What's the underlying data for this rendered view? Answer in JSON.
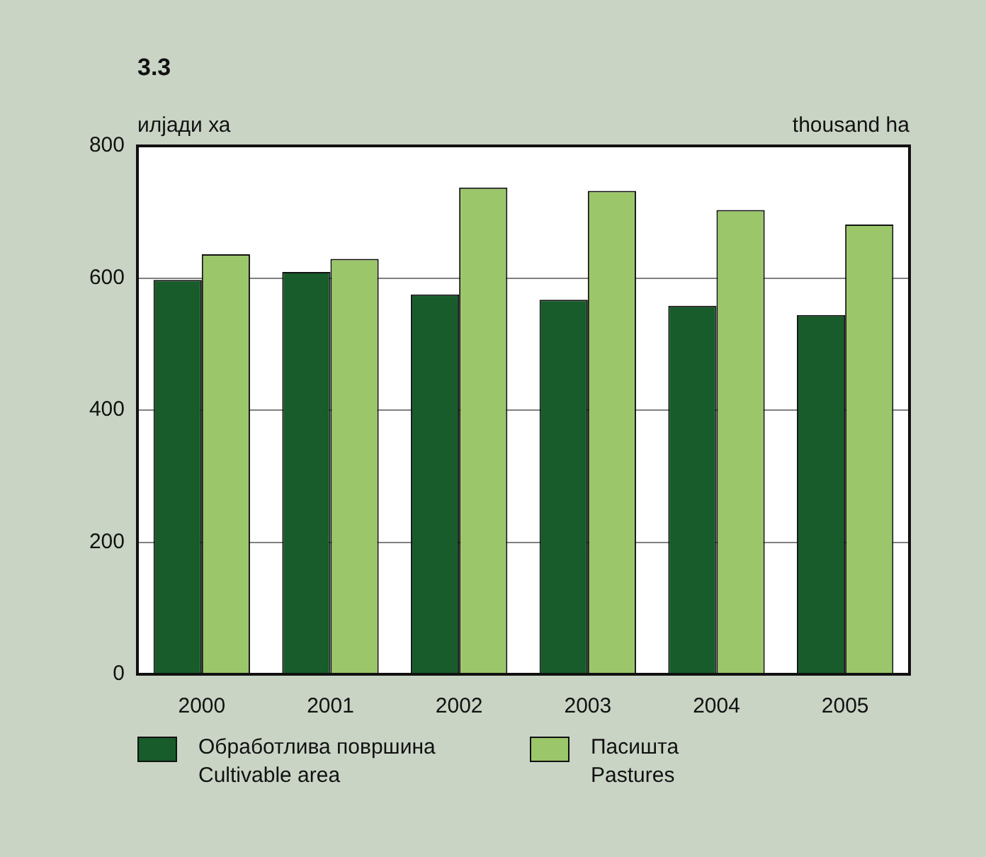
{
  "chart_data": {
    "type": "bar",
    "title": "3.3",
    "ylabel": "илјади ха",
    "annotations": [
      "thousand ha"
    ],
    "categories": [
      "2000",
      "2001",
      "2002",
      "2003",
      "2004",
      "2005"
    ],
    "series": [
      {
        "name": "Обработлива површина\nCultivable area",
        "color": "#175c2a",
        "values": [
          597,
          609,
          575,
          567,
          558,
          544
        ]
      },
      {
        "name": "Пасишта\nPastures",
        "color": "#9bc66a",
        "values": [
          636,
          629,
          737,
          732,
          703,
          681
        ]
      }
    ],
    "ylim": [
      0,
      800
    ],
    "yticks": [
      0,
      200,
      400,
      600,
      800
    ],
    "grid": "y",
    "legend": "bottom"
  }
}
